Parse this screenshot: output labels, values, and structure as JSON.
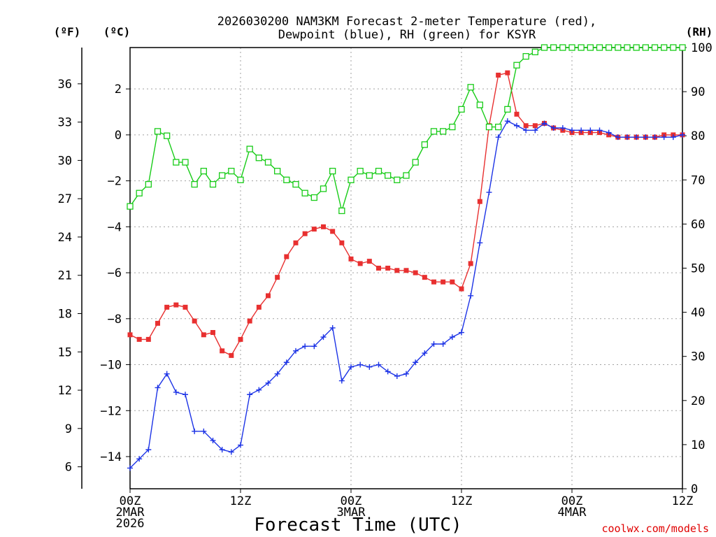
{
  "title_line1": "2026030200 NAM3KM Forecast 2-meter Temperature (red),",
  "title_line2": "Dewpoint (blue), RH (green) for KSYR",
  "unit_f": "(ºF)",
  "unit_c": "(ºC)",
  "unit_rh": "(RH)",
  "x_axis_title": "Forecast Time (UTC)",
  "credit": "coolwx.com/models",
  "colors": {
    "temperature": "#e83030",
    "dewpoint": "#1c33e6",
    "rh": "#18cc18",
    "grid": "#a0a0a0"
  },
  "chart_data": {
    "type": "line",
    "title": "2026030200 NAM3KM Forecast 2-meter Temperature (red), Dewpoint (blue), RH (green) for KSYR",
    "xlabel": "Forecast Time (UTC)",
    "x_hours": [
      0,
      1,
      2,
      3,
      4,
      5,
      6,
      7,
      8,
      9,
      10,
      11,
      12,
      13,
      14,
      15,
      16,
      17,
      18,
      19,
      20,
      21,
      22,
      23,
      24,
      25,
      26,
      27,
      28,
      29,
      30,
      31,
      32,
      33,
      34,
      35,
      36,
      37,
      38,
      39,
      40,
      41,
      42,
      43,
      44,
      45,
      46,
      47,
      48,
      49,
      50,
      51,
      52,
      53,
      54,
      55,
      56,
      57,
      58,
      59,
      60
    ],
    "x_ticks": [
      {
        "hour": 0,
        "lines": [
          "00Z",
          "2MAR",
          "2026"
        ]
      },
      {
        "hour": 12,
        "lines": [
          "12Z"
        ]
      },
      {
        "hour": 24,
        "lines": [
          "00Z",
          "3MAR"
        ]
      },
      {
        "hour": 36,
        "lines": [
          "12Z"
        ]
      },
      {
        "hour": 48,
        "lines": [
          "00Z",
          "4MAR"
        ]
      },
      {
        "hour": 60,
        "lines": [
          "12Z"
        ]
      }
    ],
    "left_axis_c": {
      "label": "(ºC)",
      "ylim": [
        -15.4,
        3.8
      ],
      "ticks": [
        -14,
        -12,
        -10,
        -8,
        -6,
        -4,
        -2,
        0,
        2
      ]
    },
    "left_axis_f": {
      "label": "(ºF)",
      "ticks": [
        6,
        9,
        12,
        15,
        18,
        21,
        24,
        27,
        30,
        33,
        36
      ]
    },
    "right_axis_rh": {
      "label": "(RH)",
      "ylim": [
        0,
        100
      ],
      "ticks": [
        0,
        10,
        20,
        30,
        40,
        50,
        60,
        70,
        80,
        90,
        100
      ]
    },
    "series": [
      {
        "name": "Temperature",
        "units": "degC",
        "color": "#e83030",
        "marker": "filled-square",
        "values": [
          -8.7,
          -8.9,
          -8.9,
          -8.2,
          -7.5,
          -7.4,
          -7.5,
          -8.1,
          -8.7,
          -8.6,
          -9.4,
          -9.6,
          -8.9,
          -8.1,
          -7.5,
          -7.0,
          -6.2,
          -5.3,
          -4.7,
          -4.3,
          -4.1,
          -4.0,
          -4.2,
          -4.7,
          -5.4,
          -5.6,
          -5.5,
          -5.8,
          -5.8,
          -5.9,
          -5.9,
          -6.0,
          -6.2,
          -6.4,
          -6.4,
          -6.4,
          -6.7,
          -5.6,
          -2.9,
          0.4,
          2.6,
          2.7,
          0.9,
          0.4,
          0.4,
          0.5,
          0.3,
          0.2,
          0.1,
          0.1,
          0.1,
          0.1,
          0.0,
          -0.1,
          -0.1,
          -0.1,
          -0.1,
          -0.1,
          0.0,
          0.0,
          0.0
        ]
      },
      {
        "name": "Dewpoint",
        "units": "degC",
        "color": "#1c33e6",
        "marker": "plus",
        "values": [
          -14.5,
          -14.1,
          -13.7,
          -11.0,
          -10.4,
          -11.2,
          -11.3,
          -12.9,
          -12.9,
          -13.3,
          -13.7,
          -13.8,
          -13.5,
          -11.3,
          -11.1,
          -10.8,
          -10.4,
          -9.9,
          -9.4,
          -9.2,
          -9.2,
          -8.8,
          -8.4,
          -10.7,
          -10.1,
          -10.0,
          -10.1,
          -10.0,
          -10.3,
          -10.5,
          -10.4,
          -9.9,
          -9.5,
          -9.1,
          -9.1,
          -8.8,
          -8.6,
          -7.0,
          -4.7,
          -2.5,
          -0.1,
          0.6,
          0.4,
          0.2,
          0.2,
          0.5,
          0.3,
          0.3,
          0.2,
          0.2,
          0.2,
          0.2,
          0.1,
          -0.1,
          -0.1,
          -0.1,
          -0.1,
          -0.1,
          -0.1,
          -0.1,
          0.0
        ]
      },
      {
        "name": "RH",
        "units": "percent",
        "color": "#18cc18",
        "marker": "open-square",
        "axis": "right",
        "values": [
          64,
          67,
          69,
          81,
          80,
          74,
          74,
          69,
          72,
          69,
          71,
          72,
          70,
          77,
          75,
          74,
          72,
          70,
          69,
          67,
          66,
          68,
          72,
          63,
          70,
          72,
          71,
          72,
          71,
          70,
          71,
          74,
          78,
          81,
          81,
          82,
          86,
          91,
          87,
          82,
          82,
          86,
          96,
          98,
          99,
          100,
          100,
          100,
          100,
          100,
          100,
          100,
          100,
          100,
          100,
          100,
          100,
          100,
          100,
          100,
          100
        ]
      }
    ]
  }
}
